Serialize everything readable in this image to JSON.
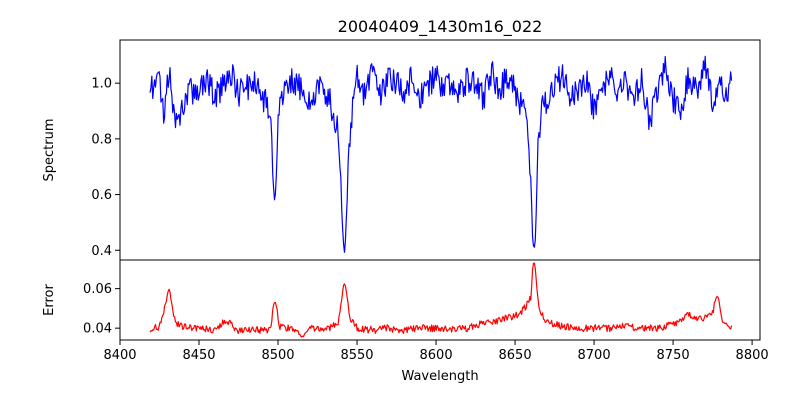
{
  "figure_title": "20040409_1430m16_022",
  "chart_data": [
    {
      "type": "line",
      "title": "20040409_1430m16_022",
      "xlabel": "",
      "ylabel": "Spectrum",
      "xlim": [
        8400,
        8805
      ],
      "ylim": [
        0.365,
        1.155
      ],
      "yticks": [
        0.4,
        0.6,
        0.8,
        1.0
      ],
      "ytick_labels": [
        "0.4",
        "0.6",
        "0.8",
        "1.0"
      ],
      "grid": false,
      "color": "#0000ff",
      "x_range": [
        8419,
        8787
      ],
      "baseline": 0.97,
      "noise_amplitude": 0.05,
      "absorption_lines": [
        {
          "x": 8498,
          "min": 0.6
        },
        {
          "x": 8542,
          "min": 0.41
        },
        {
          "x": 8662,
          "min": 0.41
        }
      ],
      "x": [
        8420,
        8425,
        8428,
        8431,
        8435,
        8440,
        8445,
        8450,
        8455,
        8460,
        8465,
        8470,
        8475,
        8480,
        8485,
        8490,
        8495,
        8498,
        8500,
        8505,
        8510,
        8515,
        8520,
        8525,
        8530,
        8535,
        8538,
        8540,
        8542,
        8544,
        8547,
        8550,
        8555,
        8560,
        8565,
        8570,
        8575,
        8580,
        8585,
        8590,
        8595,
        8600,
        8605,
        8610,
        8615,
        8620,
        8625,
        8630,
        8635,
        8640,
        8645,
        8650,
        8655,
        8658,
        8660,
        8662,
        8664,
        8667,
        8670,
        8675,
        8680,
        8685,
        8690,
        8695,
        8700,
        8705,
        8710,
        8715,
        8720,
        8725,
        8730,
        8735,
        8740,
        8745,
        8750,
        8755,
        8760,
        8765,
        8770,
        8775,
        8780,
        8785,
        8787
      ],
      "values": [
        0.98,
        1.02,
        0.87,
        1.06,
        0.84,
        0.92,
        0.97,
        0.99,
        1.02,
        0.94,
        1.0,
        1.04,
        0.96,
        0.98,
        1.01,
        0.95,
        0.91,
        0.6,
        0.93,
        0.99,
        1.01,
        0.98,
        0.93,
        0.99,
        0.97,
        0.9,
        0.83,
        0.62,
        0.41,
        0.69,
        0.91,
        1.02,
        0.96,
        1.04,
        0.97,
        1.02,
        1.0,
        0.96,
        1.03,
        0.95,
        0.99,
        1.03,
        0.97,
        1.0,
        0.96,
        1.02,
        0.99,
        0.95,
        1.04,
        0.97,
        1.02,
        0.98,
        0.9,
        0.86,
        0.66,
        0.41,
        0.76,
        0.9,
        0.94,
        0.99,
        1.03,
        0.96,
        0.98,
        1.02,
        0.9,
        0.96,
        1.03,
        0.97,
        1.0,
        0.94,
        1.02,
        0.85,
        0.98,
        1.05,
        0.94,
        0.91,
        1.03,
        0.96,
        1.06,
        0.94,
        1.0,
        0.96,
        1.01
      ]
    },
    {
      "type": "line",
      "xlabel": "Wavelength",
      "ylabel": "Error",
      "xlim": [
        8400,
        8805
      ],
      "ylim": [
        0.034,
        0.0745
      ],
      "xticks": [
        8400,
        8450,
        8500,
        8550,
        8600,
        8650,
        8700,
        8750,
        8800
      ],
      "xtick_labels": [
        "8400",
        "8450",
        "8500",
        "8550",
        "8600",
        "8650",
        "8700",
        "8750",
        "8800"
      ],
      "yticks": [
        0.04,
        0.06
      ],
      "ytick_labels": [
        "0.04",
        "0.06"
      ],
      "grid": false,
      "color": "#ff0000",
      "x_range": [
        8419,
        8787
      ],
      "baseline": 0.04,
      "noise_amplitude": 0.0018,
      "emission_peaks": [
        {
          "x": 8431,
          "max": 0.059
        },
        {
          "x": 8498,
          "max": 0.053
        },
        {
          "x": 8542,
          "max": 0.062
        },
        {
          "x": 8662,
          "max": 0.073
        },
        {
          "x": 8778,
          "max": 0.056
        }
      ],
      "x": [
        8420,
        8425,
        8431,
        8435,
        8440,
        8450,
        8460,
        8467,
        8475,
        8485,
        8495,
        8498,
        8501,
        8505,
        8510,
        8516,
        8520,
        8530,
        8538,
        8542,
        8546,
        8550,
        8560,
        8570,
        8580,
        8590,
        8600,
        8610,
        8620,
        8630,
        8640,
        8650,
        8655,
        8660,
        8662,
        8665,
        8670,
        8680,
        8690,
        8700,
        8710,
        8720,
        8730,
        8740,
        8750,
        8760,
        8765,
        8770,
        8775,
        8778,
        8781,
        8787
      ],
      "values": [
        0.039,
        0.041,
        0.059,
        0.042,
        0.041,
        0.04,
        0.039,
        0.044,
        0.039,
        0.039,
        0.039,
        0.053,
        0.041,
        0.04,
        0.039,
        0.036,
        0.04,
        0.039,
        0.043,
        0.062,
        0.044,
        0.04,
        0.039,
        0.04,
        0.039,
        0.04,
        0.04,
        0.039,
        0.04,
        0.043,
        0.044,
        0.046,
        0.049,
        0.055,
        0.073,
        0.05,
        0.043,
        0.041,
        0.04,
        0.04,
        0.04,
        0.041,
        0.04,
        0.04,
        0.042,
        0.047,
        0.044,
        0.045,
        0.048,
        0.056,
        0.043,
        0.041
      ]
    }
  ]
}
